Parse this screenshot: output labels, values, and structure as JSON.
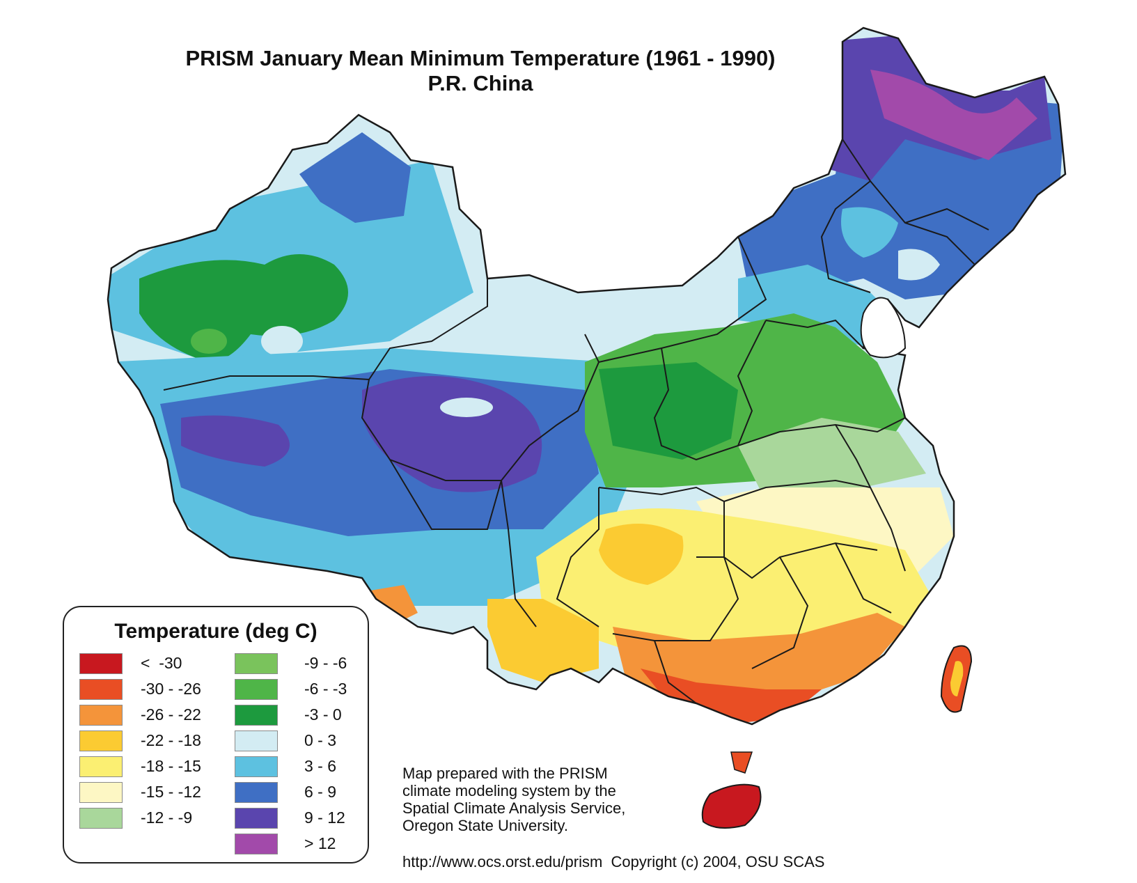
{
  "title": {
    "line1": "PRISM January Mean Minimum Temperature (1961 - 1990)",
    "line2": "P.R. China"
  },
  "legend": {
    "title": "Temperature (deg C)",
    "column1": [
      {
        "label": "<  -30",
        "color": "#c8181f"
      },
      {
        "label": "-30 - -26",
        "color": "#e94e24"
      },
      {
        "label": "-26 - -22",
        "color": "#f4943a"
      },
      {
        "label": "-22 - -18",
        "color": "#fbcb32"
      },
      {
        "label": "-18 - -15",
        "color": "#fbef72"
      },
      {
        "label": "-15 - -12",
        "color": "#fdf7c4"
      },
      {
        "label": "-12 - -9",
        "color": "#a9d79b"
      }
    ],
    "column2": [
      {
        "label": "-9 - -6",
        "color": "#7ac35c"
      },
      {
        "label": "-6 - -3",
        "color": "#4fb548"
      },
      {
        "label": "-3 - 0",
        "color": "#1d9a3e"
      },
      {
        "label": "0 - 3",
        "color": "#d3ecf3"
      },
      {
        "label": "3 - 6",
        "color": "#5dc1e0"
      },
      {
        "label": "6 - 9",
        "color": "#3f6fc4"
      },
      {
        "label": "9 - 12",
        "color": "#5a45ae"
      },
      {
        "label": "> 12",
        "color": "#a24aaa"
      }
    ]
  },
  "credit": {
    "line1": "Map prepared with the PRISM",
    "line2": "climate modeling system by the",
    "line3": "Spatial Climate Analysis Service,",
    "line4": "Oregon State University."
  },
  "footer": "http://www.ocs.orst.edu/prism  Copyright (c) 2004, OSU SCAS"
}
